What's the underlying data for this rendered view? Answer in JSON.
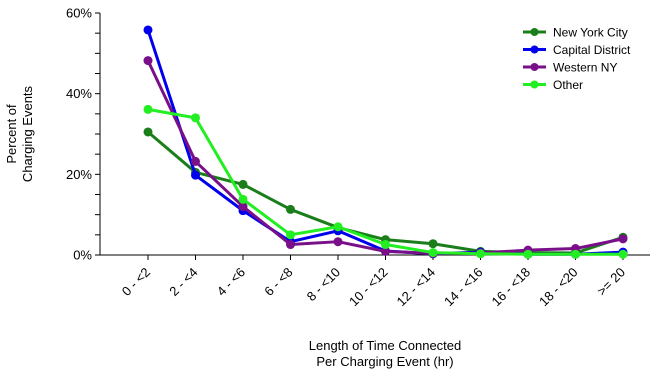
{
  "chart_data": {
    "type": "line",
    "title": "",
    "xlabel_lines": [
      "Length of Time Connected",
      "Per Charging Event (hr)"
    ],
    "ylabel_lines": [
      "Percent of",
      "Charging Events"
    ],
    "ylim": [
      0,
      60
    ],
    "yticks": [
      0,
      20,
      40,
      60
    ],
    "ytick_labels": [
      "0%",
      "20%",
      "40%",
      "60%"
    ],
    "grid": false,
    "legend_position": "top-right",
    "categories": [
      "0 - <2",
      "2 - <4",
      "4 - <6",
      "6 - <8",
      "8 - <10",
      "10 - <12",
      "12 - <14",
      "14 - <16",
      "16 - <18",
      "18 - <20",
      ">= 20"
    ],
    "series": [
      {
        "name": "New York City",
        "color": "#1a7f1a",
        "values": [
          30.5,
          20.5,
          17.5,
          11.3,
          6.8,
          3.8,
          2.8,
          0.9,
          0.6,
          0.5,
          4.4
        ]
      },
      {
        "name": "Capital District",
        "color": "#0000ee",
        "values": [
          55.8,
          19.8,
          11.0,
          3.3,
          6.0,
          1.0,
          0.3,
          0.7,
          0.2,
          0.2,
          0.7
        ]
      },
      {
        "name": "Western NY",
        "color": "#7a0f8a",
        "values": [
          48.2,
          23.2,
          12.0,
          2.6,
          3.3,
          0.9,
          0.4,
          0.5,
          1.2,
          1.6,
          4.0
        ]
      },
      {
        "name": "Other",
        "color": "#22ee22",
        "values": [
          36.1,
          34.0,
          13.8,
          5.0,
          7.0,
          2.6,
          0.6,
          0.3,
          0.2,
          0.2,
          0.2
        ]
      }
    ]
  }
}
